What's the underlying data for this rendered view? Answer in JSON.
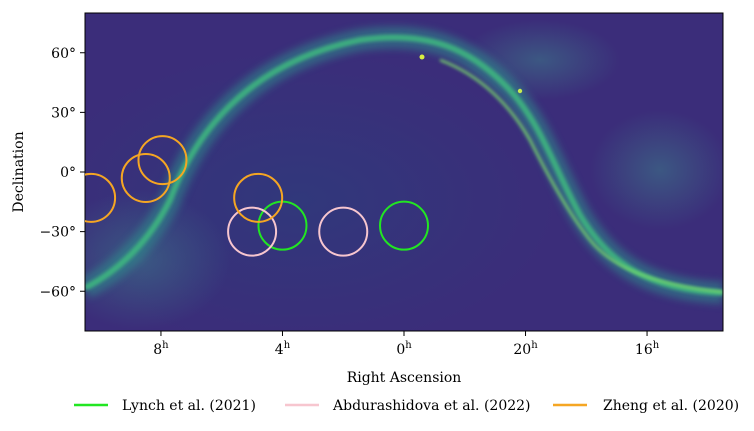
{
  "chart_data": {
    "type": "scatter",
    "title": "",
    "xlabel": "Right Ascension",
    "ylabel": "Declination",
    "xlim_hours": [
      10.5,
      -10.5
    ],
    "ylim_deg": [
      -80,
      80
    ],
    "x_ticks": [
      {
        "value": 8,
        "label": "8",
        "sup": "h"
      },
      {
        "value": 4,
        "label": "4",
        "sup": "h"
      },
      {
        "value": 0,
        "label": "0",
        "sup": "h"
      },
      {
        "value": -4,
        "label": "20",
        "sup": "h"
      },
      {
        "value": -8,
        "label": "16",
        "sup": "h"
      }
    ],
    "y_ticks": [
      {
        "value": 60,
        "label": "60°"
      },
      {
        "value": 30,
        "label": "30°"
      },
      {
        "value": 0,
        "label": "0°"
      },
      {
        "value": -30,
        "label": "−30°"
      },
      {
        "value": -60,
        "label": "−60°"
      }
    ],
    "background": "all-sky diffuse emission map (viridis colormap) with bright Galactic plane",
    "legend_position": "bottom",
    "series": [
      {
        "name": "Lynch et al. (2021)",
        "color": "#22e622",
        "fields": [
          {
            "ra_h": 4.0,
            "dec_deg": -27
          },
          {
            "ra_h": 0.0,
            "dec_deg": -27
          }
        ]
      },
      {
        "name": "Abdurashidova et al. (2022)",
        "color": "#f7c6cf",
        "fields": [
          {
            "ra_h": 5.0,
            "dec_deg": -30
          },
          {
            "ra_h": 2.0,
            "dec_deg": -30
          }
        ]
      },
      {
        "name": "Zheng et al. (2020)",
        "color": "#f5a623",
        "fields": [
          {
            "ra_h": 10.3,
            "dec_deg": -13
          },
          {
            "ra_h": 8.5,
            "dec_deg": -3
          },
          {
            "ra_h": 7.95,
            "dec_deg": 6
          },
          {
            "ra_h": 4.8,
            "dec_deg": -13
          }
        ]
      }
    ]
  }
}
